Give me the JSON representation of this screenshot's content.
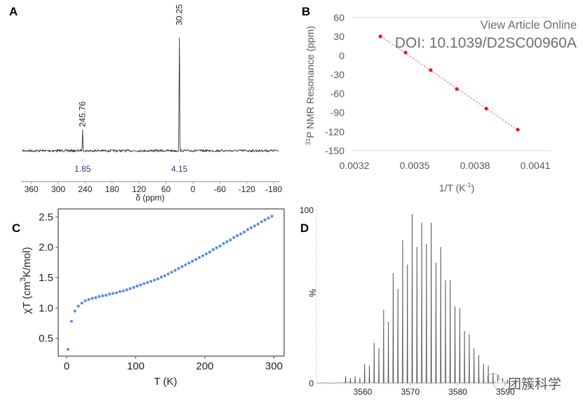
{
  "watermark": {
    "view_article": "View Article Online",
    "doi": "DOI: 10.1039/D2SC00960A",
    "brand": "团簇科学"
  },
  "chart_data": [
    {
      "panel": "A",
      "type": "line",
      "title": "",
      "xlabel": "δ (ppm)",
      "ylabel": "",
      "xlim": [
        370,
        -190
      ],
      "x_reversed": true,
      "xticks": [
        360,
        300,
        240,
        180,
        120,
        60,
        0,
        -60,
        -120,
        -180
      ],
      "xtick_labels": [
        "360",
        "300",
        "240",
        "180",
        "120",
        "60",
        "0",
        "-60",
        "-120",
        "-180"
      ],
      "peaks": [
        {
          "position": 245.76,
          "label": "245.76",
          "relative_height": 0.17,
          "integral": "1.85"
        },
        {
          "position": 30.25,
          "label": "30.25",
          "relative_height": 1.0,
          "integral": "4.15"
        }
      ],
      "integral_color": "#2f3d8c",
      "grid": false
    },
    {
      "panel": "B",
      "type": "scatter",
      "title": "",
      "xlabel": "1/T (K⁻¹)",
      "ylabel": "³¹P NMR Resonance (ppm)",
      "xlim": [
        0.0032,
        0.00413
      ],
      "ylim": [
        -150,
        60
      ],
      "xticks": [
        0.0032,
        0.0035,
        0.0038,
        0.0041
      ],
      "xtick_labels": [
        "0.0032",
        "0.0035",
        "0.0038",
        "0.0041"
      ],
      "yticks": [
        60,
        30,
        0,
        -30,
        -60,
        -90,
        -120,
        -150
      ],
      "ytick_labels": [
        "60",
        "30",
        "0",
        "-30",
        "-60",
        "-90",
        "-120",
        "-150"
      ],
      "x": [
        0.00333,
        0.003455,
        0.00358,
        0.00371,
        0.003856,
        0.004013
      ],
      "y": [
        30.2,
        4.8,
        -22.9,
        -52.7,
        -83.6,
        -116.8
      ],
      "fit_line": {
        "style": "dashed",
        "color": "#e06060"
      },
      "marker_color": "#e8141c",
      "grid": false
    },
    {
      "panel": "C",
      "type": "scatter",
      "title": "",
      "xlabel": "T (K)",
      "ylabel": "χT (cm³K/mol)",
      "ylabel_parts": [
        "χT (cm",
        "3",
        "K/mol)"
      ],
      "xlim": [
        -13,
        315
      ],
      "ylim": [
        0.2,
        2.63
      ],
      "xticks": [
        0,
        100,
        200,
        300
      ],
      "xtick_labels": [
        "0",
        "100",
        "200",
        "300"
      ],
      "yticks": [
        0.5,
        1.0,
        1.5,
        2.0,
        2.5
      ],
      "ytick_labels": [
        "0.5",
        "1.0",
        "1.5",
        "2.0",
        "2.5"
      ],
      "x": [
        2,
        7,
        12,
        17,
        22,
        27,
        32,
        37,
        42,
        47,
        52,
        57,
        62,
        67,
        72,
        77,
        82,
        87,
        92,
        97,
        102,
        107,
        112,
        117,
        122,
        127,
        132,
        137,
        142,
        147,
        152,
        157,
        162,
        167,
        172,
        177,
        182,
        187,
        192,
        197,
        202,
        207,
        212,
        217,
        222,
        227,
        232,
        237,
        242,
        247,
        252,
        257,
        262,
        267,
        272,
        277,
        282,
        287,
        292,
        297
      ],
      "y": [
        0.32,
        0.78,
        0.95,
        1.03,
        1.08,
        1.12,
        1.14,
        1.16,
        1.17,
        1.19,
        1.2,
        1.21,
        1.23,
        1.24,
        1.25,
        1.27,
        1.28,
        1.3,
        1.32,
        1.34,
        1.36,
        1.38,
        1.4,
        1.42,
        1.44,
        1.46,
        1.48,
        1.51,
        1.53,
        1.56,
        1.59,
        1.62,
        1.65,
        1.68,
        1.71,
        1.74,
        1.77,
        1.8,
        1.83,
        1.86,
        1.89,
        1.92,
        1.96,
        1.99,
        2.02,
        2.06,
        2.09,
        2.12,
        2.16,
        2.19,
        2.22,
        2.25,
        2.29,
        2.32,
        2.35,
        2.38,
        2.42,
        2.45,
        2.48,
        2.51
      ],
      "marker_color": "#5b8fe0",
      "grid": false
    },
    {
      "panel": "D",
      "type": "bar",
      "title": "",
      "xlabel": "",
      "ylabel": "%",
      "xlim": [
        3551,
        3593
      ],
      "ylim": [
        0,
        100
      ],
      "xticks": [
        3560,
        3570,
        3580,
        3590
      ],
      "xtick_labels": [
        "3560",
        "3570",
        "3580",
        "3590"
      ],
      "ytick_labels": [
        "100",
        "0"
      ],
      "x": [
        3556.4,
        3557.4,
        3558.4,
        3559.4,
        3560.4,
        3561.4,
        3562.4,
        3563.4,
        3564.4,
        3565.4,
        3566.4,
        3567.4,
        3568.4,
        3569.4,
        3570.4,
        3571.4,
        3572.4,
        3573.4,
        3574.4,
        3575.4,
        3576.4,
        3577.4,
        3578.4,
        3579.4,
        3580.4,
        3581.4,
        3582.4,
        3583.4,
        3584.4,
        3585.4,
        3586.4,
        3587.4,
        3588.4,
        3589.4,
        3590.4
      ],
      "values": [
        4,
        3,
        4,
        3,
        11,
        10,
        23,
        20,
        42,
        35,
        63,
        54,
        82,
        68,
        97,
        78,
        92,
        80,
        92,
        69,
        78,
        59,
        59,
        44,
        43,
        30,
        28,
        20,
        16,
        11,
        10,
        6,
        5,
        3,
        2
      ],
      "bar_color": "#111111",
      "grid": false
    }
  ]
}
